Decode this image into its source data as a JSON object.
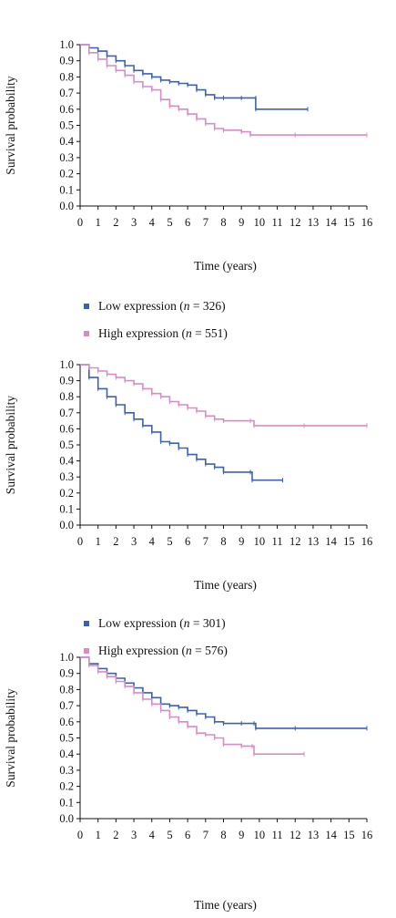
{
  "chart_data": [
    {
      "type": "line",
      "xlabel": "Time (years)",
      "ylabel": "Survival probability",
      "xlim": [
        0,
        16
      ],
      "ylim": [
        0,
        1
      ],
      "xticks": [
        "0",
        "1",
        "2",
        "3",
        "4",
        "5",
        "6",
        "7",
        "8",
        "9",
        "10",
        "11",
        "12",
        "13",
        "14",
        "15",
        "16"
      ],
      "yticks": [
        "0.0",
        "0.1",
        "0.2",
        "0.3",
        "0.4",
        "0.5",
        "0.6",
        "0.7",
        "0.8",
        "0.9",
        "1.0"
      ],
      "grid": false,
      "legend": [],
      "series": [
        {
          "color": "#3a62b0",
          "points": [
            [
              0,
              1.0
            ],
            [
              0.5,
              0.98
            ],
            [
              1,
              0.96
            ],
            [
              1.5,
              0.93
            ],
            [
              2,
              0.9
            ],
            [
              2.5,
              0.87
            ],
            [
              3,
              0.84
            ],
            [
              3.5,
              0.82
            ],
            [
              4,
              0.8
            ],
            [
              4.5,
              0.78
            ],
            [
              5,
              0.77
            ],
            [
              5.5,
              0.76
            ],
            [
              6,
              0.75
            ],
            [
              6.5,
              0.72
            ],
            [
              7,
              0.69
            ],
            [
              7.5,
              0.67
            ],
            [
              8,
              0.67
            ],
            [
              9,
              0.67
            ],
            [
              9.8,
              0.67
            ],
            [
              9.8,
              0.6
            ],
            [
              12.7,
              0.6
            ]
          ]
        },
        {
          "color": "#d98cc4",
          "points": [
            [
              0,
              1.0
            ],
            [
              0.5,
              0.95
            ],
            [
              1,
              0.91
            ],
            [
              1.5,
              0.87
            ],
            [
              2,
              0.84
            ],
            [
              2.5,
              0.81
            ],
            [
              3,
              0.77
            ],
            [
              3.5,
              0.74
            ],
            [
              4,
              0.72
            ],
            [
              4.5,
              0.66
            ],
            [
              5,
              0.62
            ],
            [
              5.5,
              0.6
            ],
            [
              6,
              0.57
            ],
            [
              6.5,
              0.54
            ],
            [
              7,
              0.51
            ],
            [
              7.5,
              0.48
            ],
            [
              8,
              0.47
            ],
            [
              9,
              0.46
            ],
            [
              9.5,
              0.44
            ],
            [
              12,
              0.44
            ],
            [
              16,
              0.44
            ]
          ]
        }
      ]
    },
    {
      "type": "line",
      "xlabel": "Time (years)",
      "ylabel": "Survival probability",
      "xlim": [
        0,
        16
      ],
      "ylim": [
        0,
        1
      ],
      "xticks": [
        "0",
        "1",
        "2",
        "3",
        "4",
        "5",
        "6",
        "7",
        "8",
        "9",
        "10",
        "11",
        "12",
        "13",
        "14",
        "15",
        "16"
      ],
      "yticks": [
        "0.0",
        "0.1",
        "0.2",
        "0.3",
        "0.4",
        "0.5",
        "0.6",
        "0.7",
        "0.8",
        "0.9",
        "1.0"
      ],
      "grid": false,
      "legend": [
        {
          "label": "Low expression (",
          "n": "n",
          "rest": " = 326)",
          "color": "#3a62b0"
        },
        {
          "label": "High expression (",
          "n": "n",
          "rest": " = 551)",
          "color": "#d98cc4"
        }
      ],
      "series": [
        {
          "color": "#3a62b0",
          "points": [
            [
              0,
              1.0
            ],
            [
              0.5,
              0.92
            ],
            [
              1,
              0.85
            ],
            [
              1.5,
              0.8
            ],
            [
              2,
              0.75
            ],
            [
              2.5,
              0.7
            ],
            [
              3,
              0.66
            ],
            [
              3.5,
              0.62
            ],
            [
              4,
              0.58
            ],
            [
              4.5,
              0.52
            ],
            [
              5,
              0.51
            ],
            [
              5.5,
              0.48
            ],
            [
              6,
              0.44
            ],
            [
              6.5,
              0.41
            ],
            [
              7,
              0.38
            ],
            [
              7.5,
              0.36
            ],
            [
              8,
              0.33
            ],
            [
              9.5,
              0.33
            ],
            [
              9.6,
              0.28
            ],
            [
              11.3,
              0.28
            ]
          ]
        },
        {
          "color": "#d98cc4",
          "points": [
            [
              0,
              1.0
            ],
            [
              0.5,
              0.98
            ],
            [
              1,
              0.96
            ],
            [
              1.5,
              0.94
            ],
            [
              2,
              0.92
            ],
            [
              2.5,
              0.9
            ],
            [
              3,
              0.88
            ],
            [
              3.5,
              0.85
            ],
            [
              4,
              0.82
            ],
            [
              4.5,
              0.8
            ],
            [
              5,
              0.77
            ],
            [
              5.5,
              0.75
            ],
            [
              6,
              0.73
            ],
            [
              6.5,
              0.71
            ],
            [
              7,
              0.68
            ],
            [
              7.5,
              0.66
            ],
            [
              8,
              0.65
            ],
            [
              9.5,
              0.65
            ],
            [
              9.7,
              0.62
            ],
            [
              12.5,
              0.62
            ],
            [
              16,
              0.62
            ]
          ]
        }
      ]
    },
    {
      "type": "line",
      "xlabel": "Time (years)",
      "ylabel": "Survival probability",
      "xlim": [
        0,
        16
      ],
      "ylim": [
        0,
        1
      ],
      "xticks": [
        "0",
        "1",
        "2",
        "3",
        "4",
        "5",
        "6",
        "7",
        "8",
        "9",
        "10",
        "11",
        "12",
        "13",
        "14",
        "15",
        "16"
      ],
      "yticks": [
        "0.0",
        "0.1",
        "0.2",
        "0.3",
        "0.4",
        "0.5",
        "0.6",
        "0.7",
        "0.8",
        "0.9",
        "1.0"
      ],
      "grid": false,
      "legend": [
        {
          "label": "Low expression (",
          "n": "n",
          "rest": " = 301)",
          "color": "#3a62b0"
        },
        {
          "label": "High expression (",
          "n": "n",
          "rest": " = 576)",
          "color": "#d98cc4"
        }
      ],
      "series": [
        {
          "color": "#3a62b0",
          "points": [
            [
              0,
              1.0
            ],
            [
              0.5,
              0.96
            ],
            [
              1,
              0.93
            ],
            [
              1.5,
              0.9
            ],
            [
              2,
              0.87
            ],
            [
              2.5,
              0.84
            ],
            [
              3,
              0.81
            ],
            [
              3.5,
              0.78
            ],
            [
              4,
              0.75
            ],
            [
              4.5,
              0.71
            ],
            [
              5,
              0.7
            ],
            [
              5.5,
              0.69
            ],
            [
              6,
              0.67
            ],
            [
              6.5,
              0.65
            ],
            [
              7,
              0.63
            ],
            [
              7.5,
              0.6
            ],
            [
              8,
              0.59
            ],
            [
              9,
              0.59
            ],
            [
              9.7,
              0.59
            ],
            [
              9.8,
              0.56
            ],
            [
              12,
              0.56
            ],
            [
              16,
              0.56
            ]
          ]
        },
        {
          "color": "#d98cc4",
          "points": [
            [
              0,
              1.0
            ],
            [
              0.5,
              0.95
            ],
            [
              1,
              0.91
            ],
            [
              1.5,
              0.88
            ],
            [
              2,
              0.85
            ],
            [
              2.5,
              0.82
            ],
            [
              3,
              0.78
            ],
            [
              3.5,
              0.74
            ],
            [
              4,
              0.71
            ],
            [
              4.5,
              0.67
            ],
            [
              5,
              0.63
            ],
            [
              5.5,
              0.6
            ],
            [
              6,
              0.57
            ],
            [
              6.5,
              0.53
            ],
            [
              7,
              0.52
            ],
            [
              7.5,
              0.5
            ],
            [
              8,
              0.46
            ],
            [
              9,
              0.45
            ],
            [
              9.6,
              0.45
            ],
            [
              9.7,
              0.4
            ],
            [
              12.5,
              0.4
            ]
          ]
        }
      ]
    }
  ]
}
